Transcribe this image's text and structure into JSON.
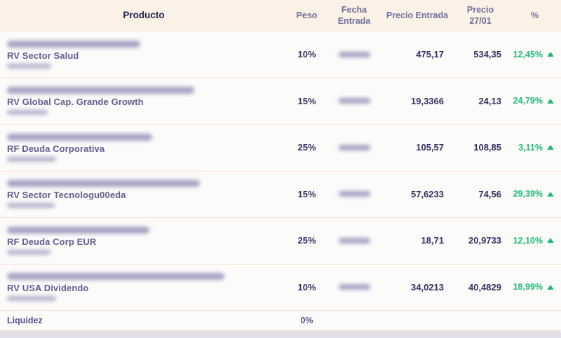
{
  "colors": {
    "positive": "#26b97c",
    "header_bg": "#fbf1e6",
    "header_text": "#716e9b",
    "producto_header_text": "#22214f",
    "number_text": "#353264",
    "label_text": "#615e92",
    "separator": "#f2e1d3",
    "bottom_strip": "#e2dfe9"
  },
  "table": {
    "headers": {
      "producto": "Producto",
      "peso": "Peso",
      "fecha_entrada": "Fecha Entrada",
      "precio_entrada": "Precio Entrada",
      "precio_actual_line1": "Precio",
      "precio_actual_line2": "27/01",
      "pct": "%"
    },
    "rows": [
      {
        "label": "RV Sector Salud",
        "peso": "10%",
        "precio_entrada": "475,17",
        "precio_actual": "534,35",
        "pct": "12,45%",
        "trend": "up",
        "redacted": {
          "title_w": 190,
          "isin_w": 63,
          "fecha_w": 45
        }
      },
      {
        "label": "RV Global Cap. Grande Growth",
        "peso": "15%",
        "precio_entrada": "19,3366",
        "precio_actual": "24,13",
        "pct": "24,79%",
        "trend": "up",
        "redacted": {
          "title_w": 267,
          "isin_w": 58,
          "fecha_w": 45
        }
      },
      {
        "label": "RF Deuda Corporativa",
        "peso": "25%",
        "precio_entrada": "105,57",
        "precio_actual": "108,85",
        "pct": "3,11%",
        "trend": "up",
        "redacted": {
          "title_w": 207,
          "isin_w": 70,
          "fecha_w": 45
        }
      },
      {
        "label": "RV Sector Tecnologu00eda",
        "peso": "15%",
        "precio_entrada": "57,6233",
        "precio_actual": "74,56",
        "pct": "29,39%",
        "trend": "up",
        "redacted": {
          "title_w": 275,
          "isin_w": 68,
          "fecha_w": 45
        }
      },
      {
        "label": "RF Deuda Corp EUR",
        "peso": "25%",
        "precio_entrada": "18,71",
        "precio_actual": "20,9733",
        "pct": "12,10%",
        "trend": "up",
        "redacted": {
          "title_w": 203,
          "isin_w": 62,
          "fecha_w": 45
        }
      },
      {
        "label": "RV USA Dividendo",
        "peso": "10%",
        "precio_entrada": "34,0213",
        "precio_actual": "40,4829",
        "pct": "18,99%",
        "trend": "up",
        "redacted": {
          "title_w": 310,
          "isin_w": 70,
          "fecha_w": 45
        }
      }
    ],
    "footer": {
      "label": "Liquidez",
      "peso": "0%"
    }
  }
}
